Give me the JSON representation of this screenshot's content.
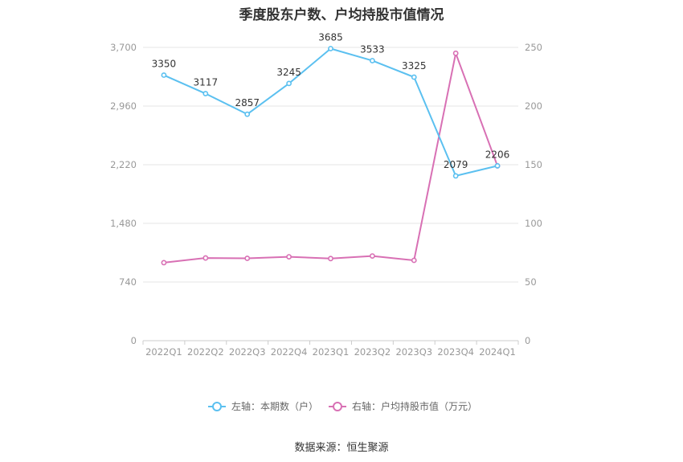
{
  "chart_data": {
    "type": "line",
    "title": "季度股东户数、户均持股市值情况",
    "categories": [
      "2022Q1",
      "2022Q2",
      "2022Q3",
      "2022Q4",
      "2023Q1",
      "2023Q2",
      "2023Q3",
      "2023Q4",
      "2024Q1"
    ],
    "left_axis": {
      "ticks": [
        "0",
        "740",
        "1,480",
        "2,220",
        "2,960",
        "3,700"
      ],
      "ylim": [
        0,
        3700
      ]
    },
    "right_axis": {
      "ticks": [
        "0",
        "50",
        "100",
        "150",
        "200",
        "250"
      ],
      "ylim": [
        0,
        250
      ]
    },
    "series": [
      {
        "name": "左轴：本期数（户）",
        "axis": "left",
        "color": "#5bc0f0",
        "values": [
          3350,
          3117,
          2857,
          3245,
          3685,
          3533,
          3325,
          2079,
          2206
        ],
        "labels": [
          "3350",
          "3117",
          "2857",
          "3245",
          "3685",
          "3533",
          "3325",
          "2079",
          "2206"
        ]
      },
      {
        "name": "右轴：户均持股市值（万元）",
        "axis": "right",
        "color": "#d870b4",
        "values": [
          66.5,
          70.5,
          70.2,
          71.5,
          70.0,
          72.2,
          68.5,
          245.0,
          149.0
        ]
      }
    ],
    "legend_position": "bottom",
    "grid": true
  },
  "source": "数据来源：恒生聚源"
}
